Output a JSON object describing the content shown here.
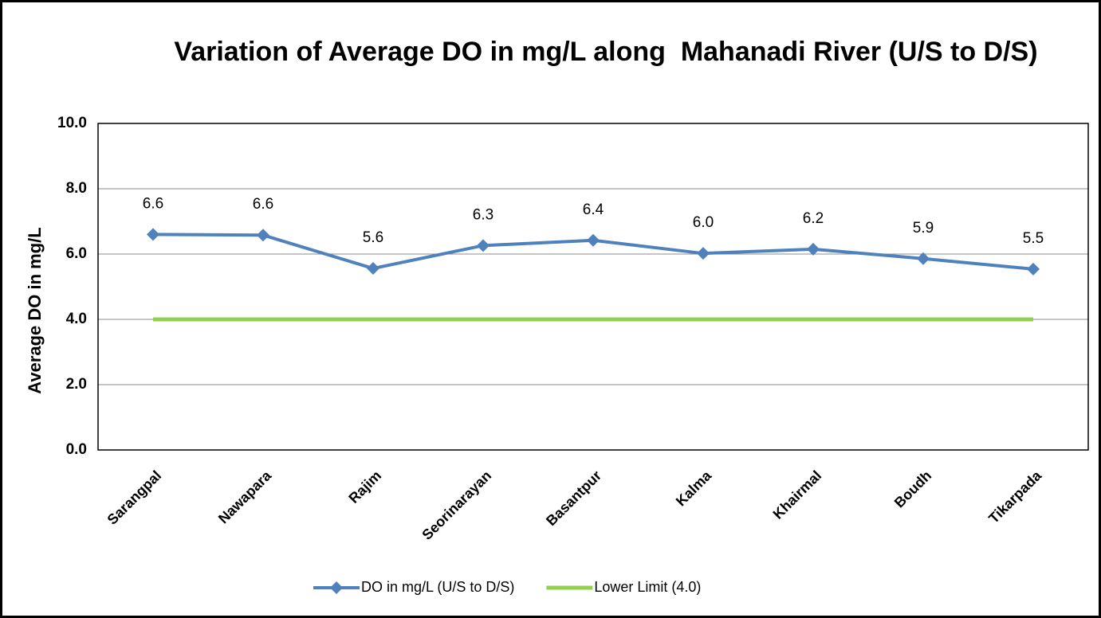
{
  "chart_data": {
    "type": "line",
    "title": "Variation of Average DO in mg/L along  Mahanadi River (U/S to D/S)",
    "y_label": "Average DO in mg/L",
    "categories": [
      "Sarangpal",
      "Nawapara",
      "Rajim",
      "Seorinarayan",
      "Basantpur",
      "Kalma",
      "Khairmal",
      "Boudh",
      "Tikarpada"
    ],
    "series": [
      {
        "name": "DO in mg/L (U/S to D/S)",
        "color": "#4f81bd",
        "marker": "diamond",
        "values": [
          6.6,
          6.58,
          5.56,
          6.26,
          6.42,
          6.02,
          6.15,
          5.86,
          5.54
        ],
        "value_labels": [
          "6.6",
          "6.6",
          "5.6",
          "6.3",
          "6.4",
          "6.0",
          "6.2",
          "5.9",
          "5.5"
        ]
      },
      {
        "name": "Lower Limit (4.0)",
        "color": "#92d050",
        "values": [
          4,
          4,
          4,
          4,
          4,
          4,
          4,
          4,
          4
        ]
      }
    ],
    "ylim": [
      0,
      10
    ],
    "yticks": [
      {
        "value": 0,
        "label": "0.0"
      },
      {
        "value": 2,
        "label": "2.0"
      },
      {
        "value": 4,
        "label": "4.0"
      },
      {
        "value": 6,
        "label": "6.0"
      },
      {
        "value": 8,
        "label": "8.0"
      },
      {
        "value": 10,
        "label": "10.0"
      }
    ],
    "grid": true,
    "legend": "bottom"
  }
}
